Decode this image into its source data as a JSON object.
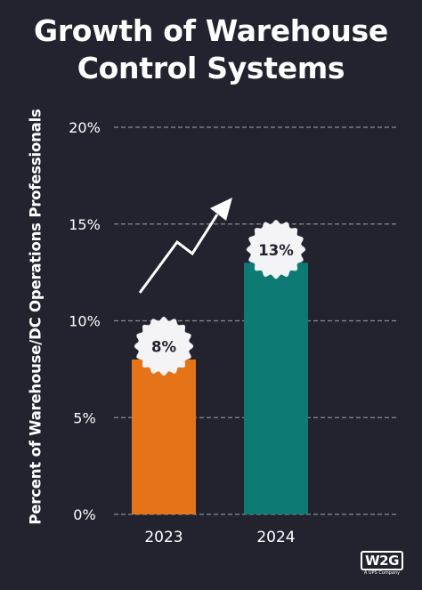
{
  "chart_data": {
    "type": "bar",
    "title_lines": [
      "Growth of Warehouse",
      "Control Systems"
    ],
    "ylabel": "Percent of Warehouse/DC Operations Professionals",
    "categories": [
      "2023",
      "2024"
    ],
    "values": [
      8,
      13
    ],
    "data_labels": [
      "8%",
      "13%"
    ],
    "yticks": [
      "0%",
      "5%",
      "10%",
      "15%",
      "20%"
    ],
    "ylim": [
      0,
      20
    ],
    "grid": true,
    "colors": [
      "#e57418",
      "#0d7b73"
    ],
    "trend_arrow": true
  },
  "logo": {
    "text": "W2G",
    "subtitle": "A UPS Company"
  },
  "colors": {
    "background": "#22232f",
    "text": "#ffffff",
    "grid": "#8a8b96"
  }
}
